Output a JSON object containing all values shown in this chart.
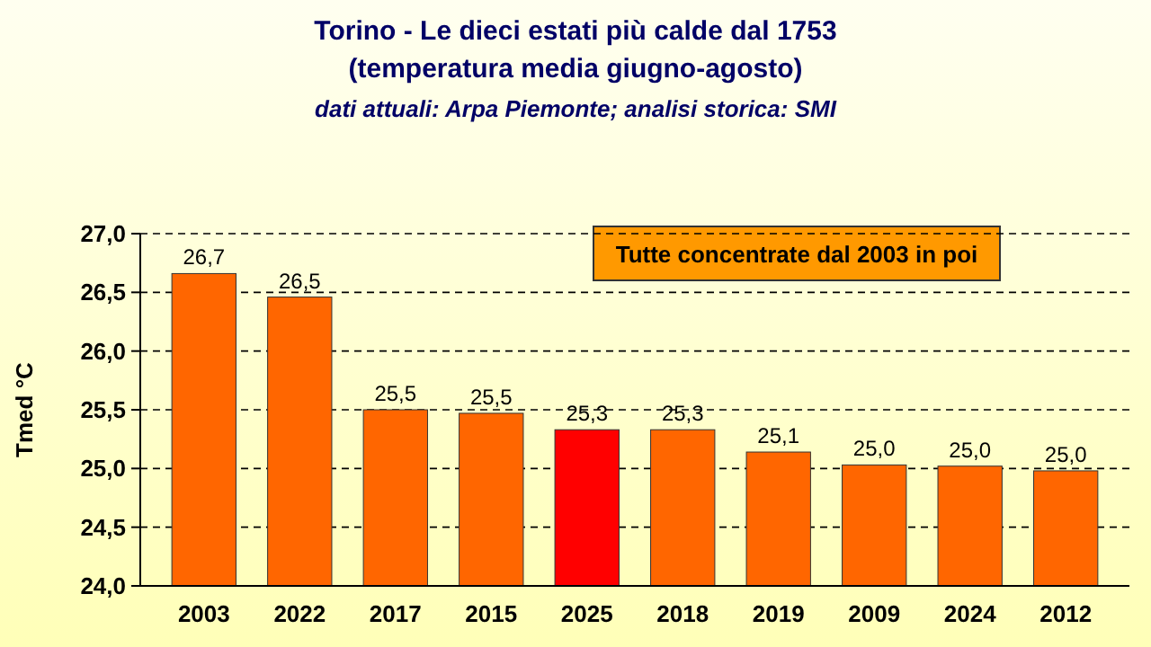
{
  "chart_data": {
    "type": "bar",
    "title": "Torino - Le dieci estati più calde dal 1753",
    "subtitle": "(temperatura media giugno-agosto)",
    "ylabel": "Tmed °C",
    "annotations": [
      "dati attuali: Arpa Piemonte; analisi storica: SMI",
      "Tutte concentrate dal 2003 in poi"
    ],
    "categories": [
      "2003",
      "2022",
      "2017",
      "2015",
      "2025",
      "2018",
      "2019",
      "2009",
      "2024",
      "2012"
    ],
    "values": [
      26.66,
      26.46,
      25.5,
      25.47,
      25.33,
      25.33,
      25.14,
      25.03,
      25.02,
      24.98
    ],
    "value_labels": [
      "26,7",
      "26,5",
      "25,5",
      "25,5",
      "25,3",
      "25,3",
      "25,1",
      "25,0",
      "25,0",
      "25,0"
    ],
    "colors": [
      "#ff6600",
      "#ff6600",
      "#ff6600",
      "#ff6600",
      "#ff0000",
      "#ff6600",
      "#ff6600",
      "#ff6600",
      "#ff6600",
      "#ff6600"
    ],
    "ylim": [
      24,
      27
    ],
    "yticks": [
      {
        "value": 24,
        "label": "24,0"
      },
      {
        "value": 24.5,
        "label": "24,5"
      },
      {
        "value": 25,
        "label": "25,0"
      },
      {
        "value": 25.5,
        "label": "25,5"
      },
      {
        "value": 26,
        "label": "26,0"
      },
      {
        "value": 26.5,
        "label": "26,5"
      },
      {
        "value": 27,
        "label": "27,0"
      }
    ],
    "grid": "y"
  }
}
